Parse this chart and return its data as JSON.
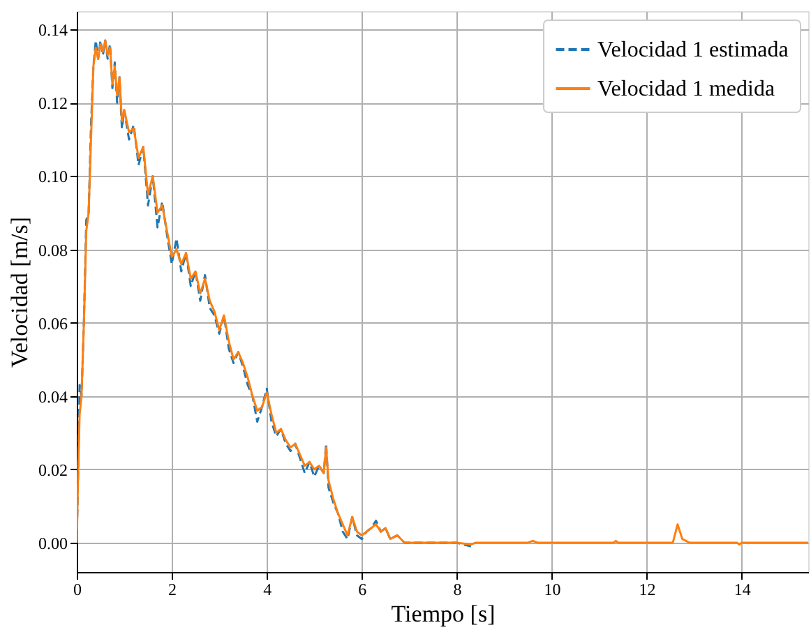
{
  "chart_data": {
    "type": "line",
    "xlabel": "Tiempo [s]",
    "ylabel": "Velocidad [m/s]",
    "xlim": [
      0,
      15.4
    ],
    "ylim": [
      -0.008,
      0.145
    ],
    "xticks": [
      0,
      2,
      4,
      6,
      8,
      10,
      12,
      14
    ],
    "yticks": [
      {
        "value": 0,
        "label": "0.00"
      },
      {
        "value": 0.02,
        "label": "0.02"
      },
      {
        "value": 0.04,
        "label": "0.04"
      },
      {
        "value": 0.06,
        "label": "0.06"
      },
      {
        "value": 0.08,
        "label": "0.08"
      },
      {
        "value": 0.1,
        "label": "0.10"
      },
      {
        "value": 0.12,
        "label": "0.12"
      },
      {
        "value": 0.14,
        "label": "0.14"
      }
    ],
    "grid": true,
    "legend": "top right",
    "x": [
      0,
      0.03,
      0.06,
      0.1,
      0.15,
      0.2,
      0.25,
      0.3,
      0.35,
      0.4,
      0.45,
      0.5,
      0.55,
      0.6,
      0.65,
      0.7,
      0.75,
      0.8,
      0.85,
      0.9,
      0.95,
      1.0,
      1.1,
      1.2,
      1.3,
      1.4,
      1.5,
      1.6,
      1.7,
      1.8,
      1.9,
      2.0,
      2.1,
      2.2,
      2.3,
      2.4,
      2.5,
      2.6,
      2.7,
      2.8,
      2.9,
      3.0,
      3.1,
      3.2,
      3.3,
      3.4,
      3.5,
      3.6,
      3.7,
      3.8,
      3.9,
      4.0,
      4.1,
      4.2,
      4.3,
      4.4,
      4.5,
      4.6,
      4.7,
      4.8,
      4.9,
      5.0,
      5.1,
      5.2,
      5.25,
      5.3,
      5.4,
      5.5,
      5.6,
      5.7,
      5.8,
      5.9,
      6.0,
      6.1,
      6.2,
      6.3,
      6.4,
      6.5,
      6.6,
      6.75,
      6.9,
      8.0,
      8.3,
      8.4,
      9.5,
      9.6,
      9.7,
      11.3,
      11.35,
      11.4,
      12.55,
      12.65,
      12.75,
      12.9,
      13.9,
      13.95,
      14.0,
      15.4
    ],
    "series": [
      {
        "name": "Velocidad 1 estimada",
        "color": "#1f77b4",
        "line_style": "dashed",
        "values": [
          0,
          0.02,
          0.043,
          0.04,
          0.06,
          0.088,
          0.09,
          0.114,
          0.13,
          0.137,
          0.132,
          0.137,
          0.133,
          0.137,
          0.132,
          0.136,
          0.124,
          0.131,
          0.12,
          0.127,
          0.113,
          0.118,
          0.11,
          0.114,
          0.103,
          0.108,
          0.092,
          0.1,
          0.086,
          0.093,
          0.084,
          0.076,
          0.083,
          0.074,
          0.079,
          0.07,
          0.074,
          0.066,
          0.073,
          0.064,
          0.062,
          0.057,
          0.062,
          0.053,
          0.049,
          0.052,
          0.048,
          0.043,
          0.04,
          0.033,
          0.037,
          0.042,
          0.033,
          0.029,
          0.031,
          0.027,
          0.025,
          0.027,
          0.023,
          0.019,
          0.022,
          0.018,
          0.021,
          0.019,
          0.027,
          0.015,
          0.011,
          0.008,
          0.003,
          0.001,
          0.007,
          0.002,
          0.001,
          0.003,
          0.004,
          0.006,
          0.003,
          0.004,
          0.001,
          0.002,
          0,
          0,
          -0.001,
          null,
          null,
          null,
          null,
          null,
          null,
          null,
          null,
          null,
          null,
          null,
          null,
          null,
          null,
          null
        ]
      },
      {
        "name": "Velocidad 1 medida",
        "color": "#ff7f0e",
        "line_style": "solid",
        "values": [
          0,
          0.02,
          0.035,
          0.04,
          0.06,
          0.085,
          0.09,
          0.11,
          0.13,
          0.135,
          0.132,
          0.136,
          0.134,
          0.137,
          0.133,
          0.135,
          0.125,
          0.13,
          0.122,
          0.127,
          0.115,
          0.118,
          0.112,
          0.113,
          0.105,
          0.108,
          0.095,
          0.1,
          0.09,
          0.092,
          0.085,
          0.078,
          0.08,
          0.076,
          0.079,
          0.072,
          0.074,
          0.068,
          0.072,
          0.066,
          0.063,
          0.058,
          0.062,
          0.055,
          0.05,
          0.052,
          0.049,
          0.045,
          0.04,
          0.036,
          0.037,
          0.041,
          0.035,
          0.03,
          0.031,
          0.028,
          0.026,
          0.027,
          0.024,
          0.021,
          0.022,
          0.02,
          0.021,
          0.019,
          0.026,
          0.017,
          0.012,
          0.008,
          0.005,
          0.002,
          0.007,
          0.003,
          0.002,
          0.003,
          0.004,
          0.005,
          0.003,
          0.004,
          0.001,
          0.002,
          0,
          0,
          -0.0005,
          0,
          0,
          0.0005,
          0,
          0,
          0.0005,
          0,
          0,
          0.005,
          0.001,
          0,
          0,
          -0.0005,
          0,
          0
        ]
      }
    ]
  }
}
